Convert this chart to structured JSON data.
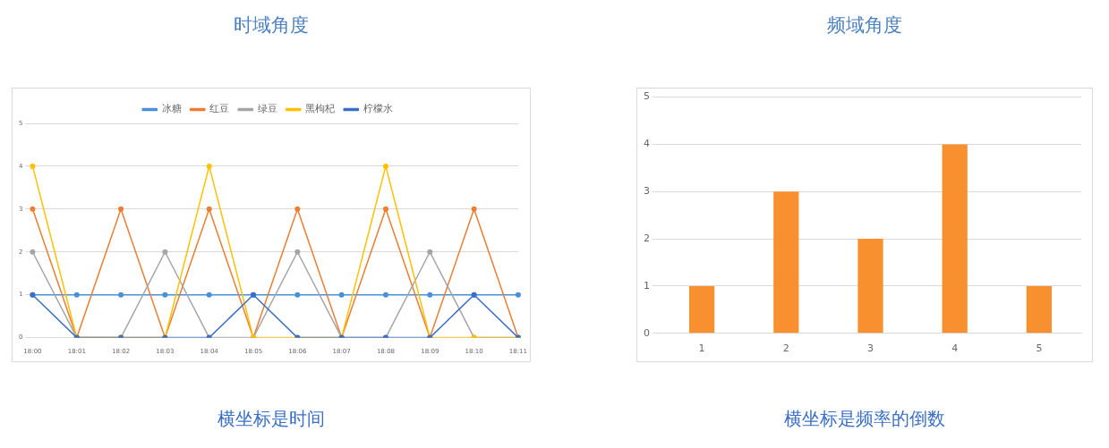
{
  "chart_data": [
    {
      "type": "line",
      "title": "时域角度",
      "annotations": [
        "横坐标是时间"
      ],
      "categories": [
        "18:00",
        "18:01",
        "18:02",
        "18:03",
        "18:04",
        "18:05",
        "18:06",
        "18:07",
        "18:08",
        "18:09",
        "18:10",
        "18:11"
      ],
      "series": [
        {
          "name": "冰糖",
          "color": "#4a90d9",
          "values": [
            1,
            1,
            1,
            1,
            1,
            1,
            1,
            1,
            1,
            1,
            1,
            1
          ]
        },
        {
          "name": "红豆",
          "color": "#ed7d31",
          "values": [
            3,
            0,
            3,
            0,
            3,
            0,
            3,
            0,
            3,
            0,
            3,
            0
          ]
        },
        {
          "name": "绿豆",
          "color": "#a5a5a5",
          "values": [
            2,
            0,
            0,
            2,
            0,
            0,
            2,
            0,
            0,
            2,
            0,
            0
          ]
        },
        {
          "name": "黑枸杞",
          "color": "#ffc000",
          "values": [
            4,
            0,
            0,
            0,
            4,
            0,
            0,
            0,
            4,
            0,
            0,
            0
          ]
        },
        {
          "name": "柠檬水",
          "color": "#3a6fc4",
          "values": [
            1,
            0,
            0,
            0,
            0,
            1,
            0,
            0,
            0,
            0,
            1,
            0
          ]
        }
      ],
      "ylim": [
        0,
        5
      ],
      "yticks": [
        0,
        1,
        2,
        3,
        4,
        5
      ],
      "grid": "y",
      "legend": "top",
      "marker": "circle"
    },
    {
      "type": "bar",
      "title": "频域角度",
      "annotations": [
        "横坐标是频率的倒数"
      ],
      "categories": [
        "1",
        "2",
        "3",
        "4",
        "5"
      ],
      "values": [
        1,
        3,
        2,
        4,
        1
      ],
      "color": "#f89030",
      "ylim": [
        0,
        5
      ],
      "yticks": [
        0,
        1,
        2,
        3,
        4,
        5
      ],
      "grid": "y"
    }
  ]
}
